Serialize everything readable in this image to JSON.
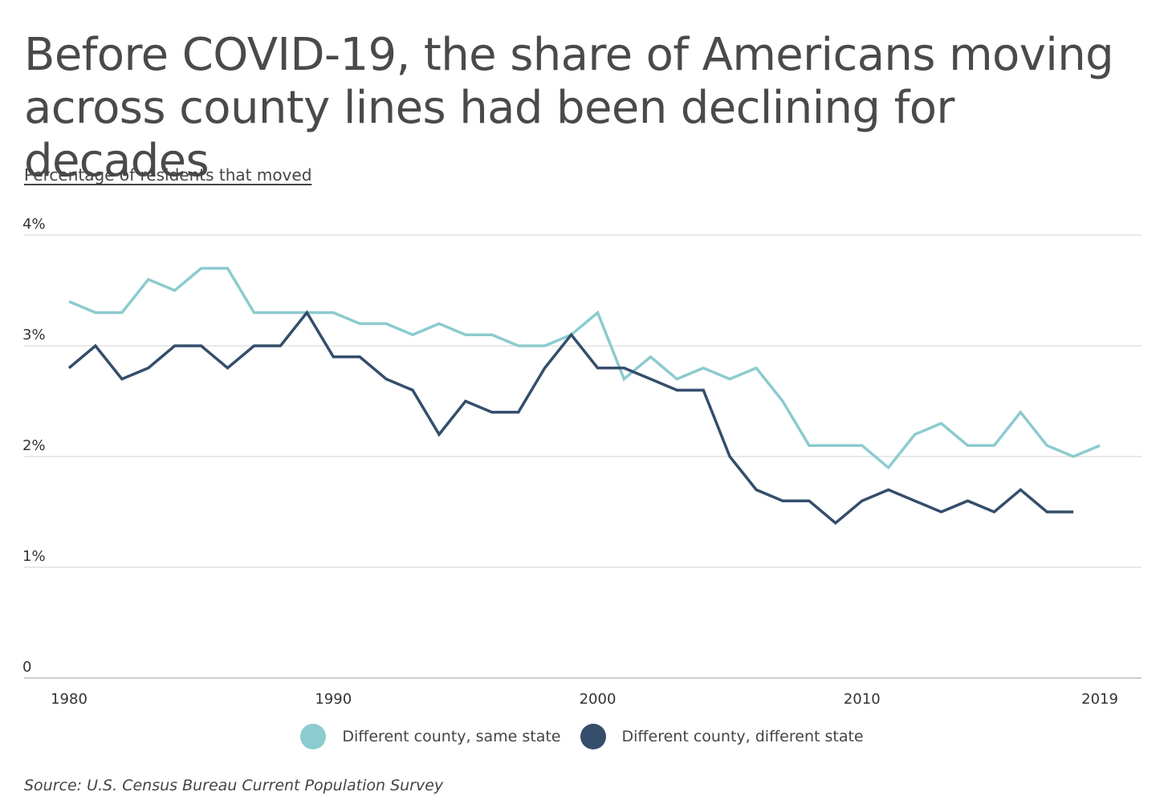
{
  "header": {
    "title_line1": "Before COVID-19, the share of Americans moving",
    "title_line2": "across county lines had been declining for decades",
    "subtitle": "Percentage of residents that moved"
  },
  "footer": {
    "source": "Source: U.S. Census Bureau Current Population Survey"
  },
  "chart_data": {
    "type": "line",
    "title": "Before COVID-19, the share of Americans moving across county lines had been declining for decades",
    "ylabel": "Percentage of residents that moved",
    "xlabel": "",
    "xlim": [
      1980,
      2020
    ],
    "ylim": [
      0,
      4
    ],
    "y_ticks": [
      {
        "value": 0,
        "label": "0"
      },
      {
        "value": 1,
        "label": "1%"
      },
      {
        "value": 2,
        "label": "2%"
      },
      {
        "value": 3,
        "label": "3%"
      },
      {
        "value": 4,
        "label": "4%"
      }
    ],
    "x_ticks": [
      {
        "value": 1980,
        "label": "1980"
      },
      {
        "value": 1990,
        "label": "1990"
      },
      {
        "value": 2000,
        "label": "2000"
      },
      {
        "value": 2010,
        "label": "2010"
      },
      {
        "value": 2019,
        "label": "2019"
      }
    ],
    "grid": true,
    "legend_position": "bottom-center",
    "x": [
      1980,
      1981,
      1982,
      1983,
      1984,
      1985,
      1986,
      1987,
      1988,
      1989,
      1990,
      1991,
      1992,
      1993,
      1994,
      1995,
      1996,
      1997,
      1998,
      1999,
      2000,
      2001,
      2002,
      2003,
      2004,
      2005,
      2006,
      2007,
      2008,
      2009,
      2010,
      2011,
      2012,
      2013,
      2014,
      2015,
      2016,
      2017,
      2018,
      2019,
      2020
    ],
    "series": [
      {
        "name": "Different county, same state",
        "color": "#8ccbcf",
        "values": [
          3.4,
          3.3,
          3.3,
          3.6,
          3.5,
          3.7,
          3.7,
          3.3,
          3.3,
          3.3,
          3.3,
          3.2,
          3.2,
          3.1,
          3.2,
          3.1,
          3.1,
          3.0,
          3.0,
          3.1,
          3.3,
          2.7,
          2.9,
          2.7,
          2.8,
          2.7,
          2.8,
          2.5,
          2.1,
          2.1,
          2.1,
          1.9,
          2.2,
          2.3,
          2.1,
          2.1,
          2.4,
          2.1,
          2.0,
          2.1,
          null
        ]
      },
      {
        "name": "Different county, different state",
        "color": "#344e6b",
        "values": [
          2.8,
          3.0,
          2.7,
          2.8,
          3.0,
          3.0,
          2.8,
          3.0,
          3.0,
          3.3,
          2.9,
          2.9,
          2.7,
          2.6,
          2.2,
          2.5,
          2.4,
          2.4,
          2.8,
          3.1,
          2.8,
          2.8,
          2.7,
          2.6,
          2.6,
          2.0,
          1.7,
          1.6,
          1.6,
          1.4,
          1.6,
          1.7,
          1.6,
          1.5,
          1.6,
          1.5,
          1.7,
          1.5,
          1.5,
          null,
          null
        ]
      }
    ]
  }
}
